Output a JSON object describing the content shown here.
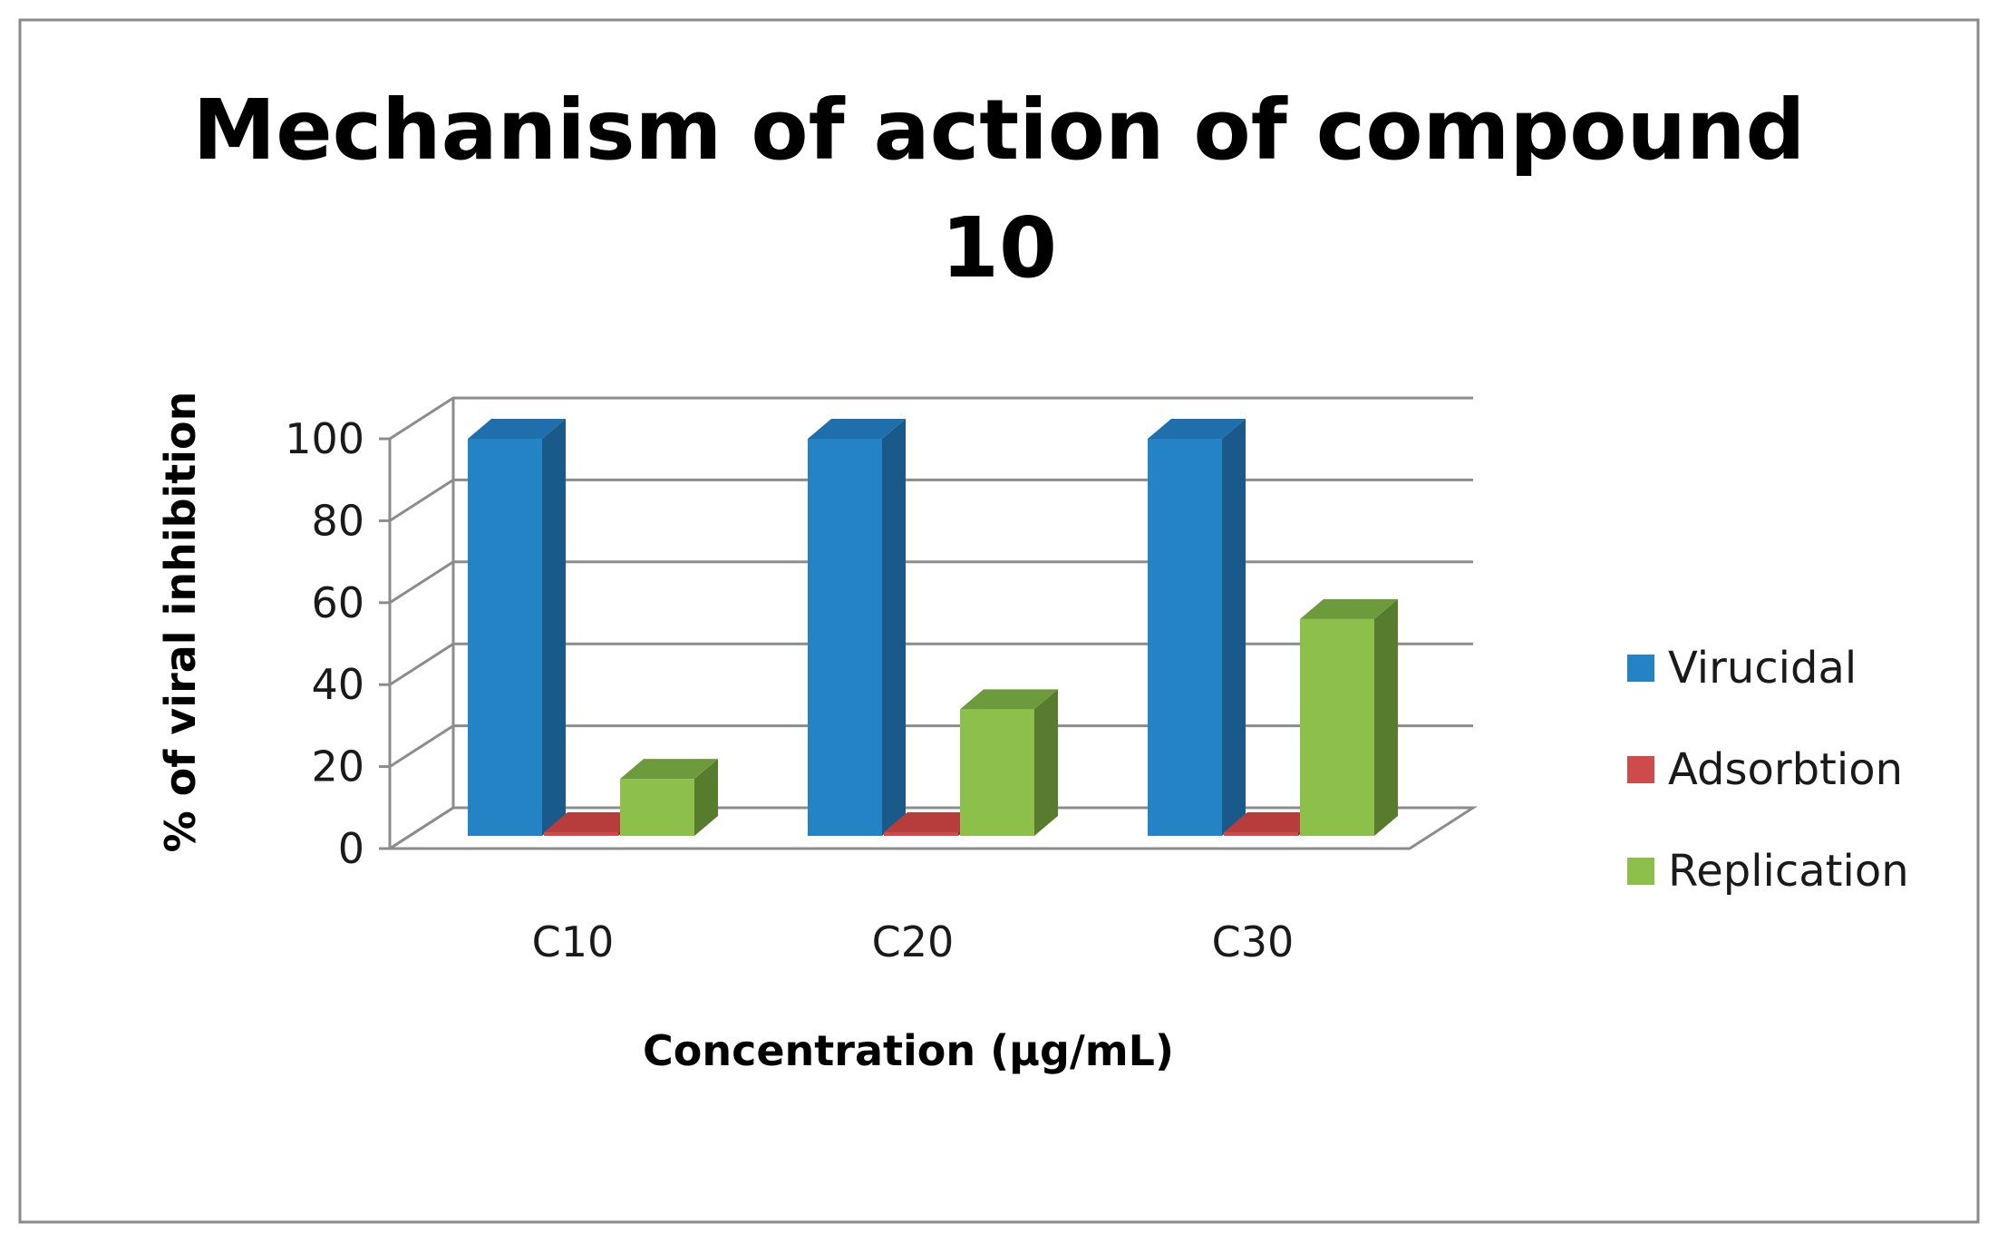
{
  "chart_data": {
    "type": "bar",
    "title_line1": "Mechanism of action of compound",
    "title_line2": "10",
    "categories": [
      "C10",
      "C20",
      "C30"
    ],
    "series": [
      {
        "name": "Virucidal",
        "values": [
          100,
          100,
          100
        ],
        "color": "#2483C5",
        "side": "#1A5A8A",
        "top": "#1E6FAC"
      },
      {
        "name": "Adsorbtion",
        "values": [
          0,
          0,
          0
        ],
        "color": "#CF4A4A",
        "side": "#8E2F2F",
        "top": "#B73C3C"
      },
      {
        "name": "Replication",
        "values": [
          17,
          34,
          56
        ],
        "color": "#8DC04B",
        "side": "#587C2E",
        "top": "#6D9A3A"
      }
    ],
    "xlabel": "Concentration (μg/mL)",
    "ylabel": "% of viral inhibition",
    "ylim": [
      0,
      100
    ],
    "yticks": [
      0,
      20,
      40,
      60,
      80,
      100
    ],
    "grid": true,
    "legend_position": "right"
  }
}
